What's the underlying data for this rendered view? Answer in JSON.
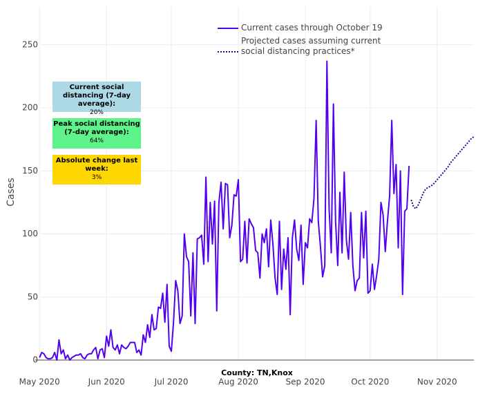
{
  "chart_data": {
    "type": "line",
    "y_label": "Cases",
    "x_label": "County: TN,Knox",
    "ylim": [
      0,
      280
    ],
    "yticks": [
      0,
      50,
      100,
      150,
      200,
      250
    ],
    "grid": true,
    "xlim": [
      "2020-04-29",
      "2020-11-18"
    ],
    "xticks": [
      {
        "value": "2020-05-01",
        "label": "May 2020"
      },
      {
        "value": "2020-06-01",
        "label": "Jun 2020"
      },
      {
        "value": "2020-07-01",
        "label": "Jul 2020"
      },
      {
        "value": "2020-08-01",
        "label": "Aug 2020"
      },
      {
        "value": "2020-09-01",
        "label": "Sep 2020"
      },
      {
        "value": "2020-10-01",
        "label": "Oct 2020"
      },
      {
        "value": "2020-11-01",
        "label": "Nov 2020"
      }
    ],
    "legend": "top",
    "series": [
      {
        "name": "Current cases through October 19",
        "color": "#5200ee",
        "style": "solid",
        "x": [
          "2020-05-01",
          "2020-05-02",
          "2020-05-03",
          "2020-05-04",
          "2020-05-05",
          "2020-05-06",
          "2020-05-07",
          "2020-05-08",
          "2020-05-09",
          "2020-05-10",
          "2020-05-11",
          "2020-05-12",
          "2020-05-13",
          "2020-05-14",
          "2020-05-15",
          "2020-05-16",
          "2020-05-17",
          "2020-05-18",
          "2020-05-19",
          "2020-05-20",
          "2020-05-21",
          "2020-05-22",
          "2020-05-23",
          "2020-05-24",
          "2020-05-25",
          "2020-05-26",
          "2020-05-27",
          "2020-05-28",
          "2020-05-29",
          "2020-05-30",
          "2020-05-31",
          "2020-06-01",
          "2020-06-02",
          "2020-06-03",
          "2020-06-04",
          "2020-06-05",
          "2020-06-06",
          "2020-06-07",
          "2020-06-08",
          "2020-06-09",
          "2020-06-10",
          "2020-06-11",
          "2020-06-12",
          "2020-06-13",
          "2020-06-14",
          "2020-06-15",
          "2020-06-16",
          "2020-06-17",
          "2020-06-18",
          "2020-06-19",
          "2020-06-20",
          "2020-06-21",
          "2020-06-22",
          "2020-06-23",
          "2020-06-24",
          "2020-06-25",
          "2020-06-26",
          "2020-06-27",
          "2020-06-28",
          "2020-06-29",
          "2020-06-30",
          "2020-07-01",
          "2020-07-02",
          "2020-07-03",
          "2020-07-04",
          "2020-07-05",
          "2020-07-06",
          "2020-07-07",
          "2020-07-08",
          "2020-07-09",
          "2020-07-10",
          "2020-07-11",
          "2020-07-12",
          "2020-07-13",
          "2020-07-14",
          "2020-07-15",
          "2020-07-16",
          "2020-07-17",
          "2020-07-18",
          "2020-07-19",
          "2020-07-20",
          "2020-07-21",
          "2020-07-22",
          "2020-07-23",
          "2020-07-24",
          "2020-07-25",
          "2020-07-26",
          "2020-07-27",
          "2020-07-28",
          "2020-07-29",
          "2020-07-30",
          "2020-07-31",
          "2020-08-01",
          "2020-08-02",
          "2020-08-03",
          "2020-08-04",
          "2020-08-05",
          "2020-08-06",
          "2020-08-07",
          "2020-08-08",
          "2020-08-09",
          "2020-08-10",
          "2020-08-11",
          "2020-08-12",
          "2020-08-13",
          "2020-08-14",
          "2020-08-15",
          "2020-08-16",
          "2020-08-17",
          "2020-08-18",
          "2020-08-19",
          "2020-08-20",
          "2020-08-21",
          "2020-08-22",
          "2020-08-23",
          "2020-08-24",
          "2020-08-25",
          "2020-08-26",
          "2020-08-27",
          "2020-08-28",
          "2020-08-29",
          "2020-08-30",
          "2020-08-31",
          "2020-09-01",
          "2020-09-02",
          "2020-09-03",
          "2020-09-04",
          "2020-09-05",
          "2020-09-06",
          "2020-09-07",
          "2020-09-08",
          "2020-09-09",
          "2020-09-10",
          "2020-09-11",
          "2020-09-12",
          "2020-09-13",
          "2020-09-14",
          "2020-09-15",
          "2020-09-16",
          "2020-09-17",
          "2020-09-18",
          "2020-09-19",
          "2020-09-20",
          "2020-09-21",
          "2020-09-22",
          "2020-09-23",
          "2020-09-24",
          "2020-09-25",
          "2020-09-26",
          "2020-09-27",
          "2020-09-28",
          "2020-09-29",
          "2020-09-30",
          "2020-10-01",
          "2020-10-02",
          "2020-10-03",
          "2020-10-04",
          "2020-10-05",
          "2020-10-06",
          "2020-10-07",
          "2020-10-08",
          "2020-10-09",
          "2020-10-10",
          "2020-10-11",
          "2020-10-12",
          "2020-10-13",
          "2020-10-14",
          "2020-10-15",
          "2020-10-16",
          "2020-10-17",
          "2020-10-18",
          "2020-10-19"
        ],
        "values": [
          2,
          6,
          5,
          2,
          1,
          1,
          2,
          6,
          0,
          16,
          5,
          8,
          1,
          4,
          0,
          2,
          3,
          4,
          4,
          5,
          2,
          1,
          4,
          5,
          5,
          8,
          10,
          1,
          8,
          9,
          2,
          19,
          11,
          24,
          10,
          8,
          12,
          5,
          12,
          10,
          9,
          11,
          14,
          14,
          14,
          6,
          8,
          4,
          20,
          14,
          28,
          18,
          36,
          24,
          25,
          42,
          41,
          53,
          30,
          60,
          11,
          7,
          30,
          63,
          55,
          29,
          35,
          100,
          82,
          78,
          35,
          85,
          29,
          96,
          97,
          99,
          76,
          145,
          78,
          125,
          92,
          126,
          39,
          125,
          141,
          104,
          140,
          139,
          97,
          107,
          131,
          130,
          143,
          78,
          80,
          110,
          77,
          112,
          108,
          105,
          87,
          85,
          65,
          100,
          93,
          104,
          74,
          111,
          92,
          65,
          52,
          110,
          56,
          88,
          72,
          97,
          36,
          97,
          111,
          88,
          79,
          107,
          60,
          93,
          89,
          112,
          109,
          128,
          190,
          110,
          90,
          66,
          75,
          237,
          120,
          85,
          203,
          110,
          75,
          133,
          85,
          149,
          95,
          80,
          117,
          75,
          55,
          63,
          65,
          117,
          81,
          118,
          53,
          55,
          76,
          56,
          67,
          80,
          125,
          115,
          86,
          110,
          130,
          190,
          132,
          155,
          89,
          150,
          52,
          118,
          120,
          154
        ]
      },
      {
        "name": "Projected cases assuming current social distancing practices*",
        "color": "#1f0a8f",
        "style": "dotted",
        "x": [
          "2020-10-20",
          "2020-10-21",
          "2020-10-22",
          "2020-10-23",
          "2020-10-24",
          "2020-10-25",
          "2020-10-26",
          "2020-10-27",
          "2020-10-28",
          "2020-10-29",
          "2020-10-30",
          "2020-10-31",
          "2020-11-01",
          "2020-11-02",
          "2020-11-03",
          "2020-11-04",
          "2020-11-05",
          "2020-11-06",
          "2020-11-07",
          "2020-11-08",
          "2020-11-09",
          "2020-11-10",
          "2020-11-11",
          "2020-11-12",
          "2020-11-13",
          "2020-11-14",
          "2020-11-15",
          "2020-11-16",
          "2020-11-17",
          "2020-11-18"
        ],
        "values": [
          127,
          122,
          120,
          122,
          126,
          130,
          134,
          136,
          137,
          138,
          139,
          141,
          143,
          145,
          147,
          149,
          151,
          153,
          156,
          158,
          160,
          162,
          164,
          166,
          168,
          170,
          172,
          174,
          176,
          177
        ]
      }
    ],
    "annotations": [
      {
        "label": "Current social distancing (7-day average):",
        "text": "20%",
        "color": "#add8e6"
      },
      {
        "label": "Peak social distancing (7-day average):",
        "text": "64%",
        "color": "#5ef38b"
      },
      {
        "label": "Absolute change last week:",
        "text": "3%",
        "color": "#ffd700"
      }
    ]
  }
}
